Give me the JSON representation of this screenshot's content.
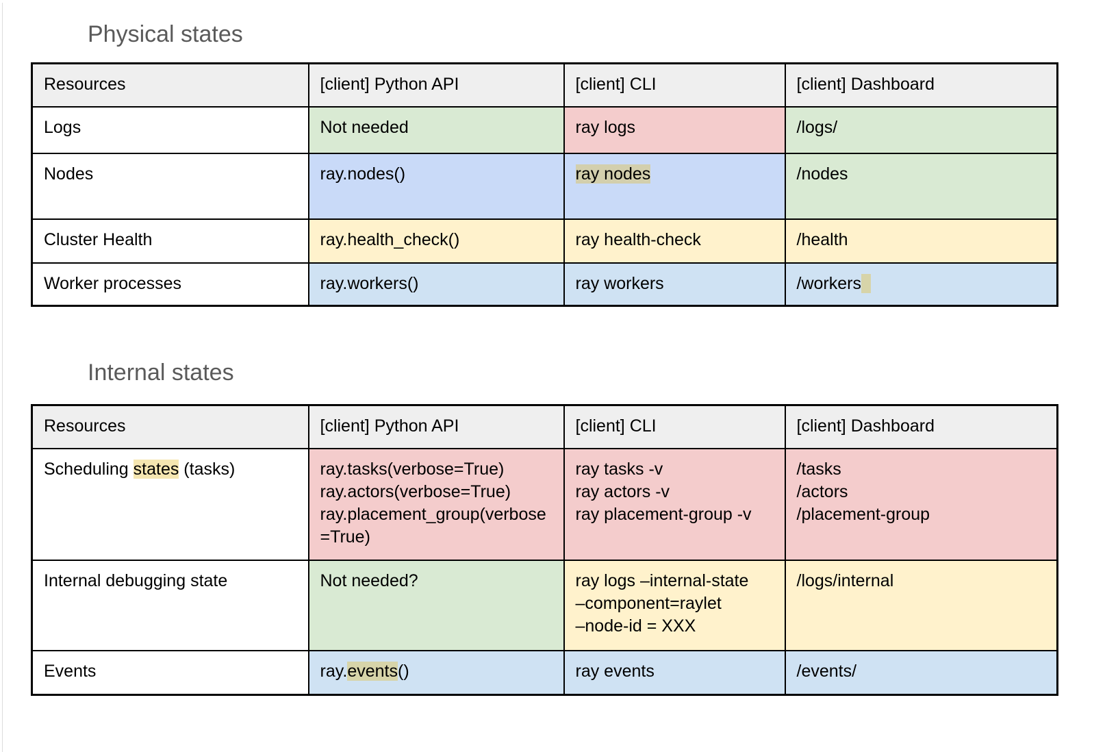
{
  "colors": {
    "headerBg": "#efefef",
    "green": "#d9ead3",
    "pink": "#f4cccc",
    "yellow": "#fff2cc",
    "blueA": "#c9daf8",
    "blueB": "#cfe2f3",
    "highlight": "rgba(228,188,50,0.38)",
    "titleColor": "#5a5a5a"
  },
  "sections": [
    {
      "title": "Physical states",
      "headers": [
        "Resources",
        "[client] Python API",
        "[client] CLI",
        "[client] Dashboard"
      ],
      "rows": [
        {
          "cells": [
            {
              "bg": "none",
              "lines": [
                [
                  {
                    "t": "Logs"
                  }
                ]
              ]
            },
            {
              "bg": "green",
              "lines": [
                [
                  {
                    "t": "Not needed"
                  }
                ]
              ]
            },
            {
              "bg": "pink",
              "lines": [
                [
                  {
                    "t": "ray logs"
                  }
                ]
              ]
            },
            {
              "bg": "green",
              "lines": [
                [
                  {
                    "t": "/logs/"
                  }
                ]
              ]
            }
          ]
        },
        {
          "cells": [
            {
              "bg": "none",
              "lines": [
                [
                  {
                    "t": "Nodes"
                  }
                ]
              ]
            },
            {
              "bg": "blueA",
              "lines": [
                [
                  {
                    "t": "ray.nodes()"
                  }
                ]
              ]
            },
            {
              "bg": "blueA",
              "lines": [
                [
                  {
                    "t": "ray nodes",
                    "hl": true
                  }
                ]
              ]
            },
            {
              "bg": "green",
              "lines": [
                [
                  {
                    "t": "/nodes"
                  }
                ]
              ]
            }
          ]
        },
        {
          "cells": [
            {
              "bg": "none",
              "lines": [
                [
                  {
                    "t": "Cluster Health"
                  }
                ]
              ]
            },
            {
              "bg": "yellow",
              "lines": [
                [
                  {
                    "t": "ray.health_check()"
                  }
                ]
              ]
            },
            {
              "bg": "yellow",
              "lines": [
                [
                  {
                    "t": "ray health-check"
                  }
                ]
              ]
            },
            {
              "bg": "yellow",
              "lines": [
                [
                  {
                    "t": "/health"
                  }
                ]
              ]
            }
          ]
        },
        {
          "cells": [
            {
              "bg": "none",
              "lines": [
                [
                  {
                    "t": "Worker processes"
                  }
                ]
              ]
            },
            {
              "bg": "blueB",
              "lines": [
                [
                  {
                    "t": "ray.workers()"
                  }
                ]
              ]
            },
            {
              "bg": "blueB",
              "lines": [
                [
                  {
                    "t": "ray workers"
                  }
                ]
              ]
            },
            {
              "bg": "blueB",
              "lines": [
                [
                  {
                    "t": "/workers"
                  },
                  {
                    "t": "  ",
                    "hl": true
                  }
                ]
              ]
            }
          ]
        }
      ]
    },
    {
      "title": "Internal states",
      "headers": [
        "Resources",
        "[client] Python API",
        "[client] CLI",
        "[client] Dashboard"
      ],
      "rows": [
        {
          "cells": [
            {
              "bg": "none",
              "lines": [
                [
                  {
                    "t": "Scheduling "
                  },
                  {
                    "t": "states",
                    "hl": true
                  },
                  {
                    "t": " (tasks)"
                  }
                ]
              ]
            },
            {
              "bg": "pink",
              "lines": [
                [
                  {
                    "t": "ray.tasks(verbose=True)"
                  }
                ],
                [
                  {
                    "t": "ray.actors(verbose=True)"
                  }
                ],
                [
                  {
                    "t": "ray.placement_group(verbose=True)"
                  }
                ]
              ]
            },
            {
              "bg": "pink",
              "lines": [
                [
                  {
                    "t": "ray tasks -v"
                  }
                ],
                [
                  {
                    "t": "ray actors -v"
                  }
                ],
                [
                  {
                    "t": "ray placement-group -v"
                  }
                ]
              ]
            },
            {
              "bg": "pink",
              "lines": [
                [
                  {
                    "t": "/tasks"
                  }
                ],
                [
                  {
                    "t": "/actors"
                  }
                ],
                [
                  {
                    "t": "/placement-group"
                  }
                ]
              ]
            }
          ]
        },
        {
          "cells": [
            {
              "bg": "none",
              "lines": [
                [
                  {
                    "t": "Internal debugging state"
                  }
                ]
              ]
            },
            {
              "bg": "green",
              "lines": [
                [
                  {
                    "t": "Not needed?"
                  }
                ]
              ]
            },
            {
              "bg": "yellow",
              "lines": [
                [
                  {
                    "t": "ray logs –internal-state"
                  }
                ],
                [
                  {
                    "t": "–component=raylet"
                  }
                ],
                [
                  {
                    "t": "–node-id = XXX"
                  }
                ]
              ]
            },
            {
              "bg": "yellow",
              "lines": [
                [
                  {
                    "t": "/logs/internal"
                  }
                ]
              ]
            }
          ]
        },
        {
          "cells": [
            {
              "bg": "none",
              "lines": [
                [
                  {
                    "t": "Events"
                  }
                ]
              ]
            },
            {
              "bg": "blueB",
              "lines": [
                [
                  {
                    "t": "ray."
                  },
                  {
                    "t": "events",
                    "hl": true
                  },
                  {
                    "t": "()"
                  }
                ]
              ]
            },
            {
              "bg": "blueB",
              "lines": [
                [
                  {
                    "t": "ray events"
                  }
                ]
              ]
            },
            {
              "bg": "blueB",
              "lines": [
                [
                  {
                    "t": "/events/"
                  }
                ]
              ]
            }
          ]
        }
      ]
    }
  ]
}
